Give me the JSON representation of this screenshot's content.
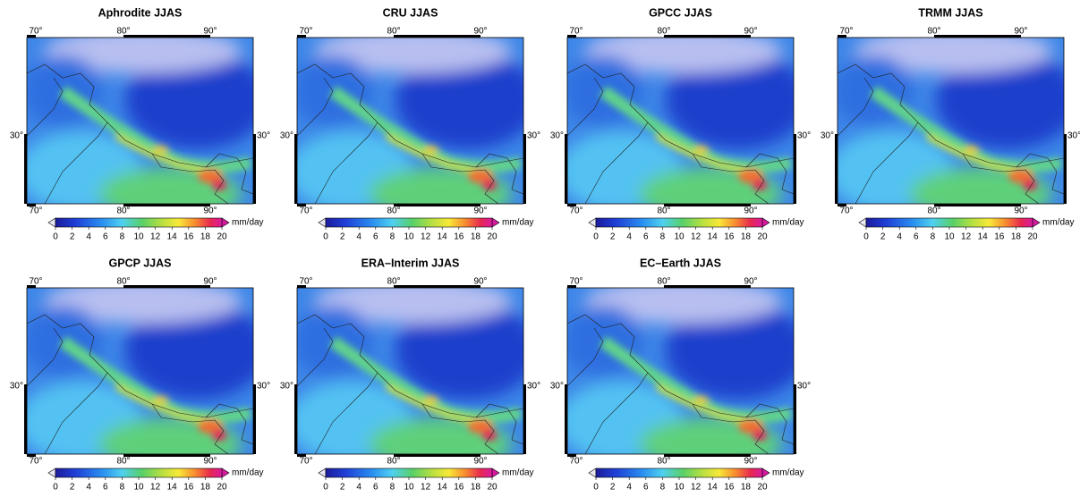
{
  "panels": [
    {
      "title": "Aphrodite JJAS"
    },
    {
      "title": "CRU JJAS"
    },
    {
      "title": "GPCC JJAS"
    },
    {
      "title": "TRMM JJAS"
    },
    {
      "title": "GPCP JJAS"
    },
    {
      "title": "ERA–Interim JJAS"
    },
    {
      "title": "EC–Earth JJAS"
    }
  ],
  "axes": {
    "lon_labels": [
      "70°",
      "80°",
      "90°"
    ],
    "lat_label": "30°"
  },
  "colorbar": {
    "ticks": [
      0,
      2,
      4,
      6,
      8,
      10,
      12,
      14,
      16,
      18,
      20
    ],
    "unit": "mm/day"
  }
}
